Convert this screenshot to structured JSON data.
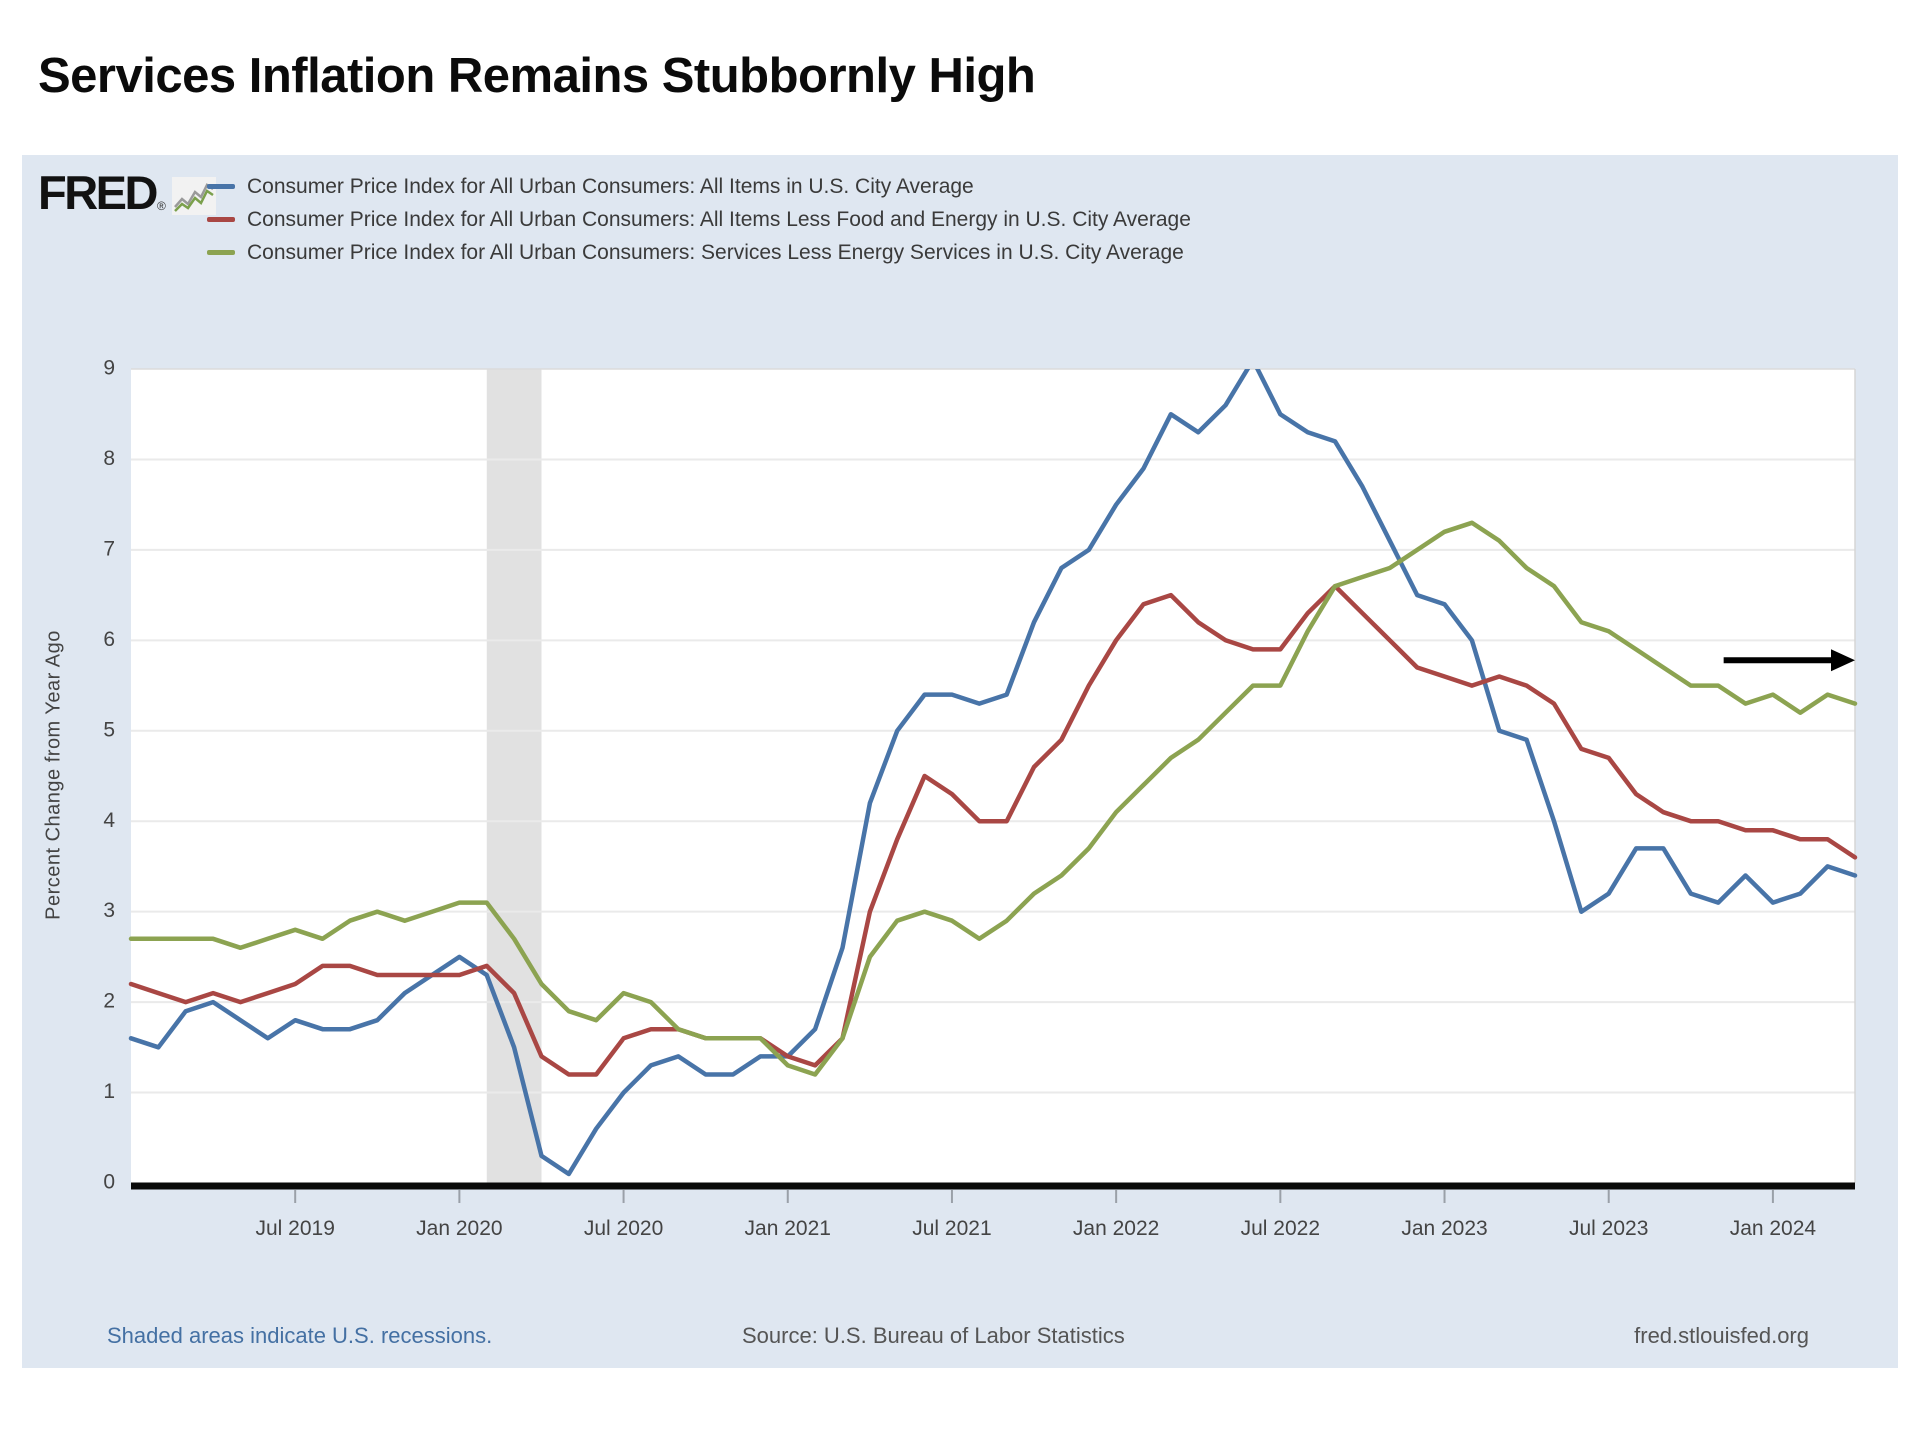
{
  "title": "Services Inflation Remains Stubbornly High",
  "branding": {
    "logo_text": "FRED",
    "registered_mark": "®"
  },
  "footer": {
    "left": "Shaded areas indicate U.S. recessions.",
    "center": "Source: U.S. Bureau of Labor Statistics",
    "right": "fred.stlouisfed.org"
  },
  "chart_data": {
    "type": "line",
    "title": "Services Inflation Remains Stubbornly High",
    "xlabel": "",
    "ylabel": "Percent Change from Year Ago",
    "ylim": [
      0,
      9
    ],
    "y_ticks": [
      0,
      1,
      2,
      3,
      4,
      5,
      6,
      7,
      8,
      9
    ],
    "grid": "horizontal",
    "legend_position": "top-left",
    "x_start": "2019-01",
    "x_end": "2024-04",
    "x_ticks": [
      {
        "label": "Jul 2019",
        "month": 6
      },
      {
        "label": "Jan 2020",
        "month": 12
      },
      {
        "label": "Jul 2020",
        "month": 18
      },
      {
        "label": "Jan 2021",
        "month": 24
      },
      {
        "label": "Jul 2021",
        "month": 30
      },
      {
        "label": "Jan 2022",
        "month": 36
      },
      {
        "label": "Jul 2022",
        "month": 42
      },
      {
        "label": "Jan 2023",
        "month": 48
      },
      {
        "label": "Jul 2023",
        "month": 54
      },
      {
        "label": "Jan 2024",
        "month": 60
      }
    ],
    "recession_bands": [
      {
        "from_month": 13,
        "to_month": 15
      }
    ],
    "annotation_arrow": {
      "y_value": 5.78,
      "from_month": 58.2,
      "to_month": 63,
      "color": "#000000"
    },
    "series": [
      {
        "name": "Consumer Price Index for All Urban Consumers: All Items in U.S. City Average",
        "color": "#4874a8",
        "values": [
          1.6,
          1.5,
          1.9,
          2.0,
          1.8,
          1.6,
          1.8,
          1.7,
          1.7,
          1.8,
          2.1,
          2.3,
          2.5,
          2.3,
          1.5,
          0.3,
          0.1,
          0.6,
          1.0,
          1.3,
          1.4,
          1.2,
          1.2,
          1.4,
          1.4,
          1.7,
          2.6,
          4.2,
          5.0,
          5.4,
          5.4,
          5.3,
          5.4,
          6.2,
          6.8,
          7.0,
          7.5,
          7.9,
          8.5,
          8.3,
          8.6,
          9.1,
          8.5,
          8.3,
          8.2,
          7.7,
          7.1,
          6.5,
          6.4,
          6.0,
          5.0,
          4.9,
          4.0,
          3.0,
          3.2,
          3.7,
          3.7,
          3.2,
          3.1,
          3.4,
          3.1,
          3.2,
          3.5,
          3.4
        ]
      },
      {
        "name": "Consumer Price Index for All Urban Consumers: All Items Less Food and Energy in U.S. City Average",
        "color": "#a94744",
        "values": [
          2.2,
          2.1,
          2.0,
          2.1,
          2.0,
          2.1,
          2.2,
          2.4,
          2.4,
          2.3,
          2.3,
          2.3,
          2.3,
          2.4,
          2.1,
          1.4,
          1.2,
          1.2,
          1.6,
          1.7,
          1.7,
          1.6,
          1.6,
          1.6,
          1.4,
          1.3,
          1.6,
          3.0,
          3.8,
          4.5,
          4.3,
          4.0,
          4.0,
          4.6,
          4.9,
          5.5,
          6.0,
          6.4,
          6.5,
          6.2,
          6.0,
          5.9,
          5.9,
          6.3,
          6.6,
          6.3,
          6.0,
          5.7,
          5.6,
          5.5,
          5.6,
          5.5,
          5.3,
          4.8,
          4.7,
          4.3,
          4.1,
          4.0,
          4.0,
          3.9,
          3.9,
          3.8,
          3.8,
          3.6
        ]
      },
      {
        "name": "Consumer Price Index for All Urban Consumers: Services Less Energy Services in U.S. City Average",
        "color": "#8ca351",
        "values": [
          2.7,
          2.7,
          2.7,
          2.7,
          2.6,
          2.7,
          2.8,
          2.7,
          2.9,
          3.0,
          2.9,
          3.0,
          3.1,
          3.1,
          2.7,
          2.2,
          1.9,
          1.8,
          2.1,
          2.0,
          1.7,
          1.6,
          1.6,
          1.6,
          1.3,
          1.2,
          1.6,
          2.5,
          2.9,
          3.0,
          2.9,
          2.7,
          2.9,
          3.2,
          3.4,
          3.7,
          4.1,
          4.4,
          4.7,
          4.9,
          5.2,
          5.5,
          5.5,
          6.1,
          6.6,
          6.7,
          6.8,
          7.0,
          7.2,
          7.3,
          7.1,
          6.8,
          6.6,
          6.2,
          6.1,
          5.9,
          5.7,
          5.5,
          5.5,
          5.3,
          5.4,
          5.2,
          5.4,
          5.3
        ]
      }
    ]
  }
}
